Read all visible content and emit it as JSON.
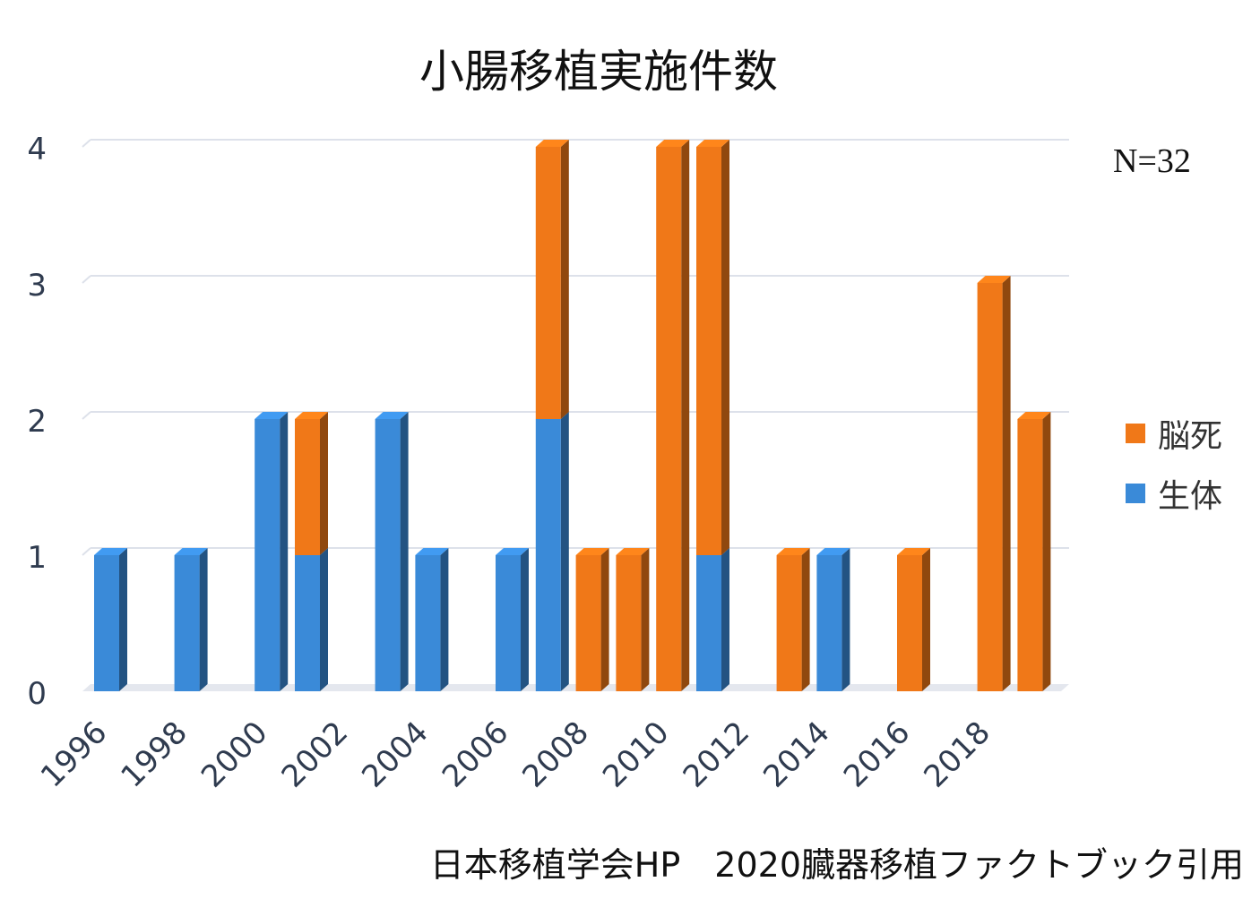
{
  "chart_data": {
    "type": "bar",
    "stacked": true,
    "title": "小腸移植実施件数",
    "annotation": "N=32",
    "footer": "日本移植学会HP　2020臓器移植ファクトブック引用",
    "x": [
      1996,
      1997,
      1998,
      1999,
      2000,
      2001,
      2002,
      2003,
      2004,
      2005,
      2006,
      2007,
      2008,
      2009,
      2010,
      2011,
      2012,
      2013,
      2014,
      2015,
      2016,
      2017,
      2018,
      2019
    ],
    "x_tick_labels": [
      "1996",
      "1998",
      "2000",
      "2002",
      "2004",
      "2006",
      "2008",
      "2010",
      "2012",
      "2014",
      "2016",
      "2018"
    ],
    "series": [
      {
        "name": "生体",
        "color": "#3a8ad8",
        "values": [
          1,
          0,
          1,
          0,
          2,
          1,
          0,
          2,
          1,
          0,
          1,
          2,
          0,
          0,
          0,
          1,
          0,
          0,
          1,
          0,
          0,
          0,
          0,
          0
        ]
      },
      {
        "name": "脳死",
        "color": "#f07818",
        "values": [
          0,
          0,
          0,
          0,
          0,
          1,
          0,
          0,
          0,
          0,
          0,
          2,
          1,
          1,
          4,
          3,
          0,
          1,
          0,
          0,
          1,
          0,
          3,
          2
        ]
      }
    ],
    "legend_order": [
      "脳死",
      "生体"
    ],
    "legend_position": "right",
    "ylim": [
      0,
      4
    ],
    "y_ticks": [
      0,
      1,
      2,
      3,
      4
    ],
    "grid": true
  }
}
